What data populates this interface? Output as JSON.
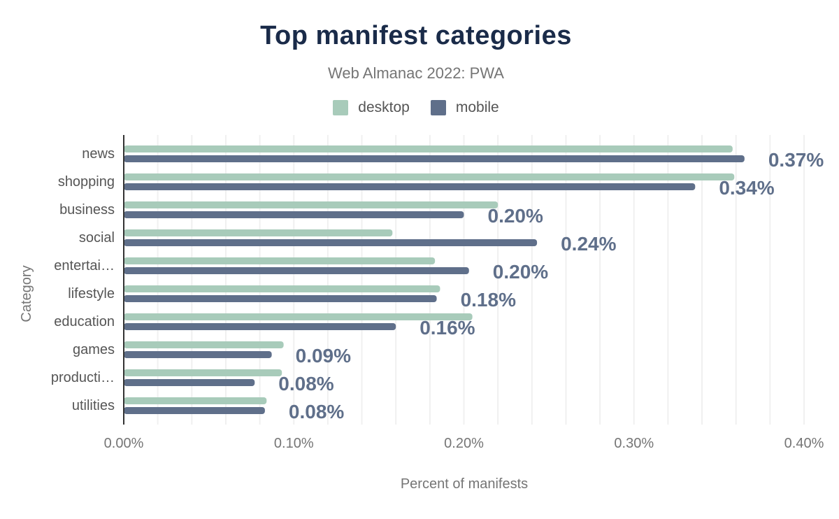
{
  "chart_data": {
    "type": "bar",
    "orientation": "horizontal",
    "title": "Top manifest categories",
    "subtitle": "Web Almanac 2022: PWA",
    "xlabel": "Percent of manifests",
    "ylabel": "Category",
    "xlim": [
      0,
      0.4
    ],
    "x_ticks": [
      "0.00%",
      "0.10%",
      "0.20%",
      "0.30%",
      "0.40%"
    ],
    "grid": true,
    "legend_position": "top",
    "categories": [
      "news",
      "shopping",
      "business",
      "social",
      "entertai…",
      "lifestyle",
      "education",
      "games",
      "producti…",
      "utilities"
    ],
    "series": [
      {
        "name": "desktop",
        "color": "#a8cbba",
        "values": [
          0.358,
          0.359,
          0.22,
          0.158,
          0.183,
          0.186,
          0.205,
          0.094,
          0.093,
          0.084
        ]
      },
      {
        "name": "mobile",
        "color": "#5f6f8a",
        "values": [
          0.365,
          0.336,
          0.2,
          0.243,
          0.203,
          0.184,
          0.16,
          0.087,
          0.077,
          0.083
        ],
        "data_labels": [
          "0.37%",
          "0.34%",
          "0.20%",
          "0.24%",
          "0.20%",
          "0.18%",
          "0.16%",
          "0.09%",
          "0.08%",
          "0.08%"
        ]
      }
    ]
  }
}
